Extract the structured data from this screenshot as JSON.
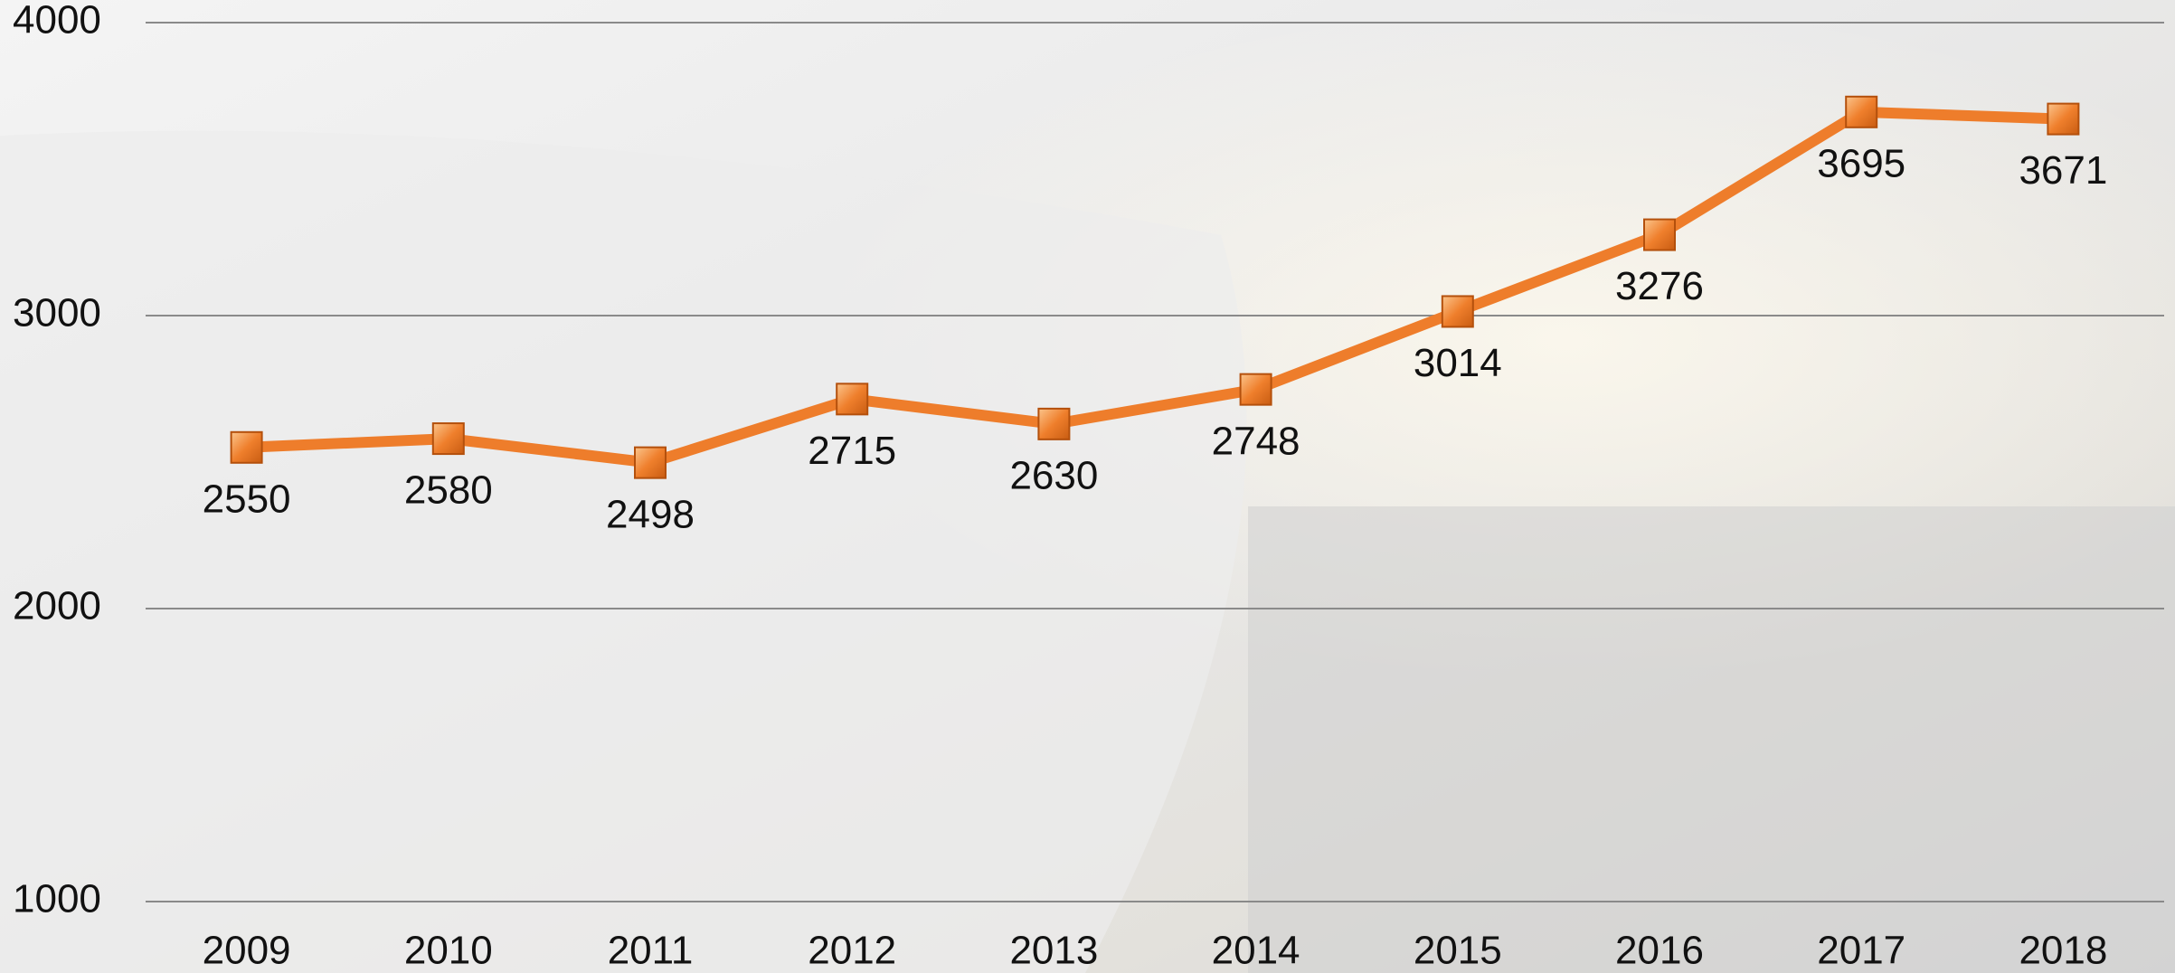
{
  "chart_data": {
    "type": "line",
    "categories": [
      "2009",
      "2010",
      "2011",
      "2012",
      "2013",
      "2014",
      "2015",
      "2016",
      "2017",
      "2018"
    ],
    "series": [
      {
        "color": "#ee7d2b",
        "values": [
          2550,
          2580,
          2498,
          2715,
          2630,
          2748,
          3014,
          3276,
          3695,
          3671
        ]
      }
    ],
    "ylim": [
      1000,
      4000
    ],
    "yticks": [
      1000,
      2000,
      3000,
      4000
    ],
    "grid": true
  }
}
